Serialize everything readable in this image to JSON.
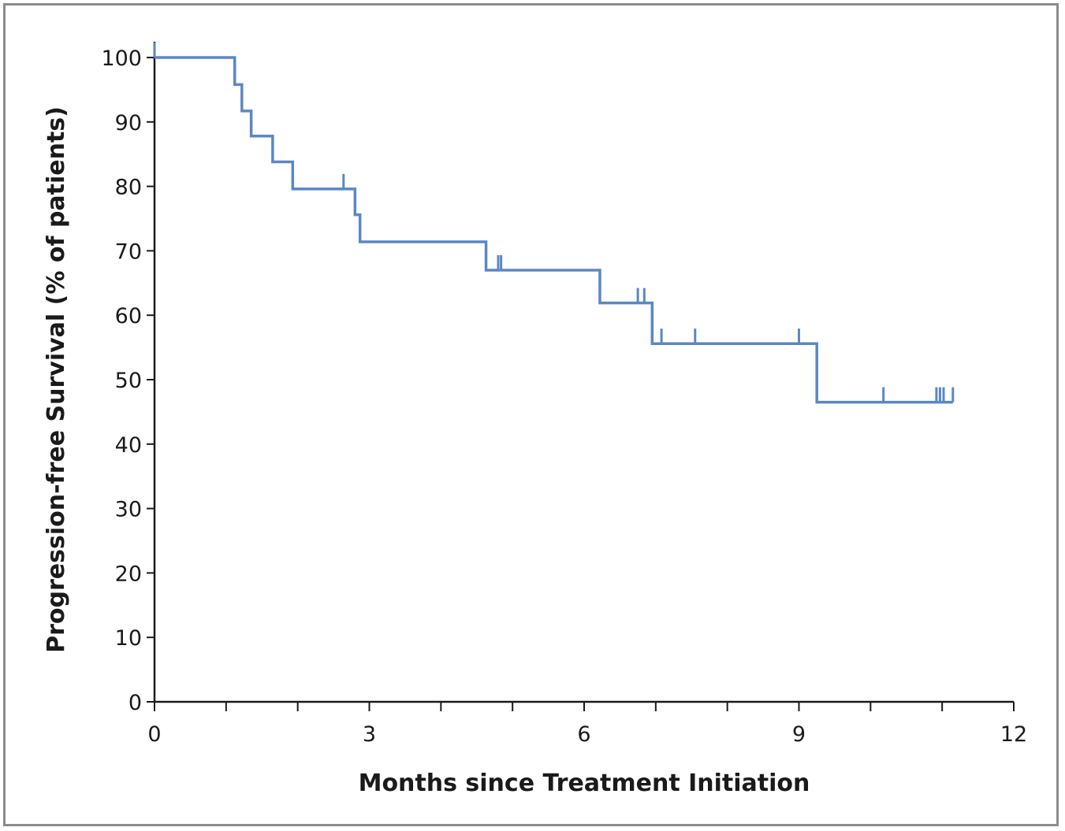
{
  "chart_data": {
    "type": "line",
    "title": "",
    "xlabel": "Months since Treatment Initiation",
    "ylabel": "Progression-free Survival (% of patients)",
    "xlim": [
      0,
      12
    ],
    "ylim": [
      0,
      100
    ],
    "xticks": [
      0,
      3,
      6,
      9,
      12
    ],
    "xminor_step": 1,
    "yticks": [
      0,
      10,
      20,
      30,
      40,
      50,
      60,
      70,
      80,
      90,
      100
    ],
    "grid": false,
    "legend": "none",
    "series": [
      {
        "color": "#5b87c5",
        "step": "post",
        "x": [
          0,
          1.12,
          1.22,
          1.35,
          1.65,
          1.93,
          2.8,
          2.87,
          4.63,
          6.22,
          6.95,
          9.25,
          11.15
        ],
        "y": [
          100,
          95.8,
          91.7,
          87.8,
          83.8,
          79.6,
          75.6,
          71.4,
          67.0,
          61.9,
          55.6,
          46.5,
          46.5
        ],
        "censored": [
          {
            "x": 0.0,
            "y": 100
          },
          {
            "x": 2.64,
            "y": 79.6
          },
          {
            "x": 4.8,
            "y": 67.0
          },
          {
            "x": 4.84,
            "y": 67.0
          },
          {
            "x": 6.75,
            "y": 61.9
          },
          {
            "x": 6.84,
            "y": 61.9
          },
          {
            "x": 7.08,
            "y": 55.6
          },
          {
            "x": 7.55,
            "y": 55.6
          },
          {
            "x": 9.0,
            "y": 55.6
          },
          {
            "x": 10.18,
            "y": 46.5
          },
          {
            "x": 10.92,
            "y": 46.5
          },
          {
            "x": 10.97,
            "y": 46.5
          },
          {
            "x": 11.02,
            "y": 46.5
          },
          {
            "x": 11.15,
            "y": 46.5
          }
        ]
      }
    ]
  }
}
